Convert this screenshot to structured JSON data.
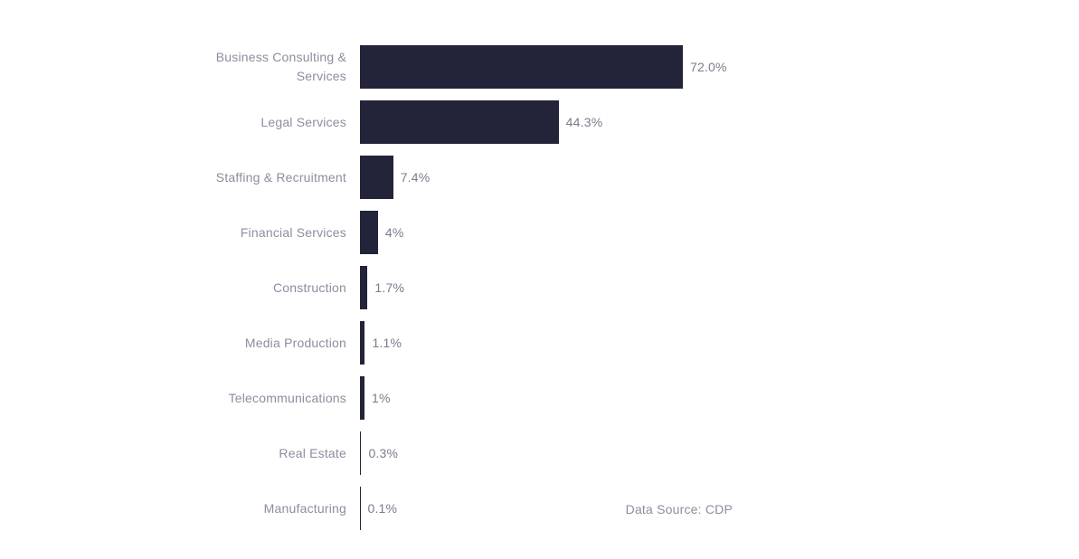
{
  "chart_data": {
    "type": "bar",
    "orientation": "horizontal",
    "title": "",
    "xlabel": "",
    "ylabel": "",
    "categories": [
      "Business Consulting & Services",
      "Legal Services",
      "Staffing & Recruitment",
      "Financial Services",
      "Construction",
      "Media Production",
      "Telecommunications",
      "Real Estate",
      "Manufacturing"
    ],
    "values": [
      72.0,
      44.3,
      7.4,
      4,
      1.7,
      1.1,
      1,
      0.3,
      0.1
    ],
    "value_labels": [
      "72.0%",
      "44.3%",
      "7.4%",
      "4%",
      "1.7%",
      "1.1%",
      "1%",
      "0.3%",
      "0.1%"
    ],
    "unit": "%",
    "xlim": [
      0,
      72
    ],
    "grid": false,
    "legend": "none",
    "bar_color": "#232339",
    "category_label_color": "#8d8d9f",
    "value_label_color": "#7b7b8c",
    "source_note_color": "#8d8d9f",
    "background_color": "#ffffff",
    "source_note": "Data Source: CDP"
  }
}
